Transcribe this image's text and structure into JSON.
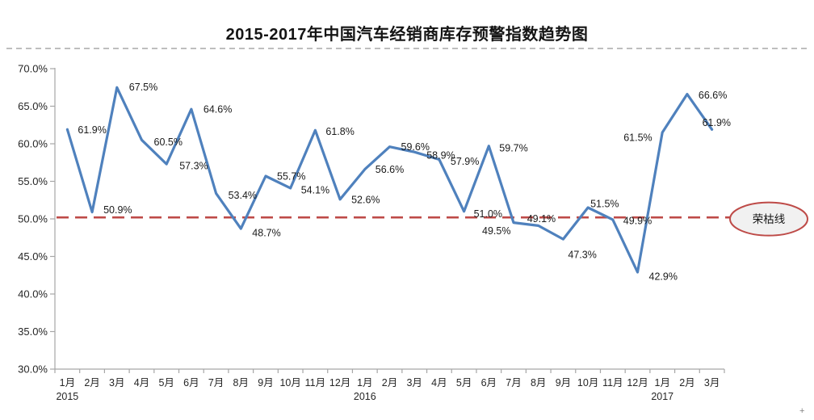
{
  "page": {
    "title": "2015-2017年中国汽车经销商库存预警指数趋势图",
    "corner_mark": "+"
  },
  "chart_data": {
    "type": "line",
    "title": "2015-2017年中国汽车经销商库存预警指数趋势图",
    "x_categories": [
      "1月",
      "2月",
      "3月",
      "4月",
      "5月",
      "6月",
      "7月",
      "8月",
      "9月",
      "10月",
      "11月",
      "12月",
      "1月",
      "2月",
      "3月",
      "4月",
      "5月",
      "6月",
      "7月",
      "8月",
      "9月",
      "10月",
      "11月",
      "12月",
      "1月",
      "2月",
      "3月"
    ],
    "year_groups": [
      {
        "label": "2015",
        "start_index": 0
      },
      {
        "label": "2016",
        "start_index": 12
      },
      {
        "label": "2017",
        "start_index": 24
      }
    ],
    "values": [
      61.9,
      50.9,
      67.5,
      60.5,
      57.3,
      64.6,
      53.4,
      48.7,
      55.7,
      54.1,
      61.8,
      52.6,
      56.6,
      59.6,
      58.9,
      57.9,
      51.0,
      59.7,
      49.5,
      49.1,
      47.3,
      51.5,
      49.9,
      42.9,
      61.5,
      66.6,
      61.9
    ],
    "data_labels": [
      "61.9%",
      "50.9%",
      "67.5%",
      "60.5%",
      "57.3%",
      "64.6%",
      "53.4%",
      "48.7%",
      "55.7%",
      "54.1%",
      "61.8%",
      "52.6%",
      "56.6%",
      "59.6%",
      "58.9%",
      "57.9%",
      "51.0%",
      "59.7%",
      "49.5%",
      "49.1%",
      "47.3%",
      "51.5%",
      "49.9%",
      "42.9%",
      "61.5%",
      "66.6%",
      "61.9%"
    ],
    "y_ticks": [
      "70.0%",
      "65.0%",
      "60.0%",
      "55.0%",
      "50.0%",
      "45.0%",
      "40.0%",
      "35.0%",
      "30.0%"
    ],
    "ylim": [
      30,
      70
    ],
    "y_step": 5,
    "grid": "off",
    "legend": "none",
    "line_color": "#4f81bd",
    "axis_color": "#a6a6a6",
    "label_color": "#1a1a1a",
    "reference_line": {
      "value": 50.2,
      "color": "#be4b48",
      "label": "荣枯线",
      "bubble_fill": "#f1f1f1"
    }
  }
}
